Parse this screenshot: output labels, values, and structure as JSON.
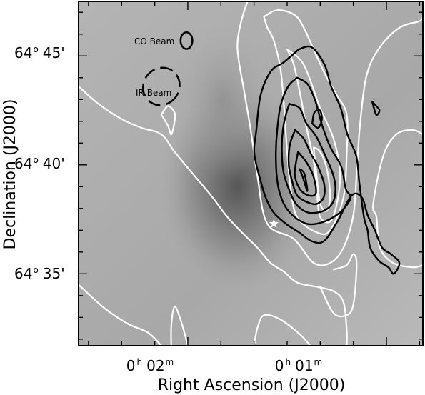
{
  "chart_data": {
    "type": "contour",
    "xlabel": "Right Ascension (J2000)",
    "ylabel": "Declination (J2000)",
    "x_ticks": [
      {
        "value": "0h02m",
        "hours": "0",
        "minutes": "02"
      },
      {
        "value": "0h01m",
        "hours": "0",
        "minutes": "01"
      }
    ],
    "y_ticks": [
      {
        "value": 45,
        "deg": "64",
        "min": "45"
      },
      {
        "value": 40,
        "deg": "64",
        "min": "40"
      },
      {
        "value": 35,
        "deg": "64",
        "min": "35"
      }
    ],
    "xlim_sec": [
      153,
      49
    ],
    "ylim_arcmin": [
      31.7,
      47.5
    ],
    "beams": [
      {
        "label": "CO Beam",
        "ra_sec": 120.4,
        "dec_arcmin": 45.7,
        "rx_sec": 1.8,
        "ry_arcmin": 0.38,
        "style": "solid"
      },
      {
        "label": "IR Beam",
        "ra_sec": 128,
        "dec_arcmin": 43.6,
        "rx_sec": 5.4,
        "ry_arcmin": 0.88,
        "style": "dashed"
      }
    ],
    "star_marker": {
      "ra_sec": 94,
      "dec_arcmin": 37.3
    },
    "colors": {
      "co_contours": "#000000",
      "ir_contours": "#ffffff",
      "background": "#a9a9a9"
    },
    "co_contours": [
      [
        [
          86.5,
          45.3
        ],
        [
          82.6,
          45.4
        ],
        [
          78.7,
          44.6
        ],
        [
          76.7,
          43.6
        ],
        [
          73.8,
          42.6
        ],
        [
          71.8,
          41.4
        ],
        [
          69.1,
          40.4
        ],
        [
          68.2,
          39.2
        ],
        [
          66.8,
          37.6
        ],
        [
          65.7,
          37.0
        ],
        [
          64.9,
          36.2
        ],
        [
          62.3,
          35.6
        ],
        [
          59.4,
          35.3
        ],
        [
          57.8,
          35.0
        ],
        [
          56.1,
          35.5
        ],
        [
          58.6,
          35.9
        ],
        [
          61.3,
          36.2
        ],
        [
          63.5,
          37.0
        ],
        [
          65.7,
          37.7
        ],
        [
          67.4,
          38.5
        ],
        [
          70.5,
          38.6
        ],
        [
          74.8,
          37.4
        ],
        [
          78.9,
          36.5
        ],
        [
          82.6,
          36.5
        ],
        [
          86.4,
          36.9
        ],
        [
          90.4,
          37.3
        ],
        [
          94.0,
          37.8
        ],
        [
          96.2,
          38.4
        ],
        [
          97.9,
          39.2
        ],
        [
          99.9,
          40.5
        ],
        [
          99.3,
          41.6
        ],
        [
          98.0,
          43.2
        ],
        [
          94.9,
          44.3
        ],
        [
          91.1,
          44.7
        ],
        [
          86.5,
          45.3
        ]
      ],
      [
        [
          87.0,
          44.0
        ],
        [
          83.8,
          43.7
        ],
        [
          81.4,
          42.9
        ],
        [
          79.4,
          41.8
        ],
        [
          76.9,
          40.8
        ],
        [
          73.6,
          39.9
        ],
        [
          72.3,
          38.9
        ],
        [
          70.8,
          38.5
        ],
        [
          73.4,
          37.9
        ],
        [
          77.2,
          37.5
        ],
        [
          81.0,
          37.3
        ],
        [
          84.2,
          37.3
        ],
        [
          87.7,
          37.6
        ],
        [
          90.6,
          38.1
        ],
        [
          92.4,
          38.8
        ],
        [
          93.2,
          39.6
        ],
        [
          93.4,
          40.6
        ],
        [
          93.0,
          41.6
        ],
        [
          92.0,
          42.7
        ],
        [
          89.7,
          43.6
        ],
        [
          87.0,
          44.0
        ]
      ],
      [
        [
          89.3,
          42.8
        ],
        [
          86.2,
          42.6
        ],
        [
          84.2,
          41.9
        ],
        [
          81.2,
          41.3
        ],
        [
          78.4,
          40.4
        ],
        [
          76.2,
          39.6
        ],
        [
          75.4,
          38.9
        ],
        [
          76.1,
          38.3
        ],
        [
          78.8,
          37.9
        ],
        [
          83.3,
          37.8
        ],
        [
          86.7,
          38.1
        ],
        [
          88.7,
          38.6
        ],
        [
          91.0,
          39.6
        ],
        [
          91.6,
          40.6
        ],
        [
          91.3,
          41.6
        ],
        [
          90.2,
          42.4
        ],
        [
          89.3,
          42.8
        ]
      ],
      [
        [
          87.6,
          41.6
        ],
        [
          85.0,
          41.2
        ],
        [
          82.8,
          40.5
        ],
        [
          80.6,
          39.9
        ],
        [
          78.8,
          39.1
        ],
        [
          79.0,
          38.5
        ],
        [
          81.2,
          38.2
        ],
        [
          84.1,
          38.3
        ],
        [
          87.0,
          38.6
        ],
        [
          88.4,
          39.2
        ],
        [
          89.5,
          40.0
        ],
        [
          89.2,
          40.9
        ],
        [
          87.6,
          41.6
        ]
      ],
      [
        [
          86.7,
          40.6
        ],
        [
          84.1,
          40.1
        ],
        [
          82.1,
          39.5
        ],
        [
          81.3,
          38.7
        ],
        [
          83.6,
          38.6
        ],
        [
          86.2,
          38.9
        ],
        [
          87.7,
          39.6
        ],
        [
          86.7,
          40.6
        ]
      ],
      [
        [
          86.2,
          39.8
        ],
        [
          85.2,
          39.4
        ],
        [
          83.9,
          38.8
        ],
        [
          84.8,
          39.6
        ],
        [
          86.2,
          39.8
        ]
      ],
      [
        [
          82.4,
          41.9
        ],
        [
          80.6,
          41.7
        ],
        [
          79.5,
          42.1
        ],
        [
          80.1,
          42.5
        ],
        [
          81.8,
          42.4
        ],
        [
          82.4,
          41.9
        ]
      ],
      [
        [
          64.3,
          42.9
        ],
        [
          63.1,
          42.7
        ],
        [
          62.1,
          42.5
        ],
        [
          63.1,
          42.3
        ],
        [
          64.3,
          42.9
        ]
      ]
    ],
    "ir_contours": [
      [
        [
          153,
          43.6
        ],
        [
          147,
          42.8
        ],
        [
          140,
          42.1
        ],
        [
          134,
          41.7
        ],
        [
          128,
          41.4
        ],
        [
          124,
          40.6
        ],
        [
          118,
          39.5
        ],
        [
          113,
          38.6
        ],
        [
          108,
          37.6
        ],
        [
          103,
          36.8
        ],
        [
          99,
          36.2
        ],
        [
          95,
          35.5
        ],
        [
          91,
          35.1
        ],
        [
          87,
          34.6
        ],
        [
          81,
          34.4
        ],
        [
          76,
          34.2
        ],
        [
          73,
          33.7
        ],
        [
          72,
          32.4
        ],
        [
          72,
          31.7
        ]
      ],
      [
        [
          153,
          34.5
        ],
        [
          145,
          33.4
        ],
        [
          138,
          32.7
        ],
        [
          132,
          32.3
        ],
        [
          128,
          31.7
        ]
      ],
      [
        [
          120,
          31.7
        ],
        [
          122,
          32.8
        ],
        [
          124,
          33.5
        ],
        [
          125,
          32.6
        ],
        [
          125,
          31.7
        ]
      ],
      [
        [
          100,
          31.7
        ],
        [
          99,
          32.5
        ],
        [
          97,
          33.1
        ],
        [
          92,
          32.9
        ],
        [
          86,
          32.2
        ],
        [
          83,
          31.7
        ]
      ],
      [
        [
          102,
          47.5
        ],
        [
          104,
          46.5
        ],
        [
          105,
          45.3
        ],
        [
          103,
          43.4
        ],
        [
          101,
          41.6
        ],
        [
          99,
          39.5
        ],
        [
          96,
          37.3
        ],
        [
          88,
          36.6
        ],
        [
          82,
          35.5
        ],
        [
          77,
          35.5
        ],
        [
          73,
          36.2
        ],
        [
          70,
          37.7
        ],
        [
          69,
          39.6
        ],
        [
          68,
          41.8
        ],
        [
          66,
          44.1
        ],
        [
          62,
          45.4
        ],
        [
          56,
          46.3
        ],
        [
          50,
          46.6
        ],
        [
          49,
          46.8
        ]
      ],
      [
        [
          97,
          46.8
        ],
        [
          96,
          46.3
        ],
        [
          94,
          45.7
        ],
        [
          92,
          44.4
        ],
        [
          91,
          42.8
        ],
        [
          90,
          40.6
        ],
        [
          89,
          39.0
        ],
        [
          87,
          37.6
        ],
        [
          81,
          36.9
        ],
        [
          77,
          37.0
        ],
        [
          73,
          38.5
        ],
        [
          72,
          40.5
        ],
        [
          72,
          42.3
        ],
        [
          75,
          43.2
        ],
        [
          79,
          44.3
        ],
        [
          85,
          46.3
        ],
        [
          88,
          46.9
        ],
        [
          93,
          47.1
        ],
        [
          97,
          46.8
        ]
      ],
      [
        [
          90,
          45.3
        ],
        [
          88,
          44.6
        ],
        [
          86,
          43.2
        ],
        [
          84,
          41.6
        ],
        [
          82,
          40.2
        ],
        [
          81,
          38.7
        ],
        [
          80,
          37.6
        ],
        [
          77,
          37.4
        ],
        [
          75,
          38.2
        ],
        [
          74,
          39.6
        ],
        [
          76,
          41.2
        ],
        [
          80,
          42.6
        ],
        [
          85,
          44.6
        ],
        [
          90,
          45.3
        ]
      ],
      [
        [
          82,
          40.8
        ],
        [
          81,
          39.4
        ],
        [
          80,
          38.2
        ],
        [
          78,
          37.9
        ],
        [
          77,
          38.6
        ],
        [
          78,
          39.8
        ],
        [
          80,
          40.6
        ],
        [
          82,
          40.8
        ]
      ],
      [
        [
          128,
          42.3
        ],
        [
          126,
          41.8
        ],
        [
          125,
          41.4
        ],
        [
          124,
          42.0
        ],
        [
          124,
          42.4
        ],
        [
          126,
          42.7
        ],
        [
          128,
          42.3
        ]
      ],
      [
        [
          49,
          41.4
        ],
        [
          52,
          41.6
        ],
        [
          57,
          41.4
        ],
        [
          61,
          40.4
        ],
        [
          64,
          38.2
        ],
        [
          63,
          37.6
        ],
        [
          62,
          36.2
        ],
        [
          58,
          35.5
        ],
        [
          52,
          35.3
        ],
        [
          49,
          35.4
        ]
      ],
      [
        [
          80,
          34.4
        ],
        [
          76,
          33.2
        ],
        [
          72,
          33.1
        ],
        [
          70,
          33.6
        ],
        [
          69,
          35.4
        ],
        [
          70,
          35.9
        ],
        [
          72,
          35.4
        ],
        [
          76,
          35.2
        ]
      ]
    ]
  }
}
